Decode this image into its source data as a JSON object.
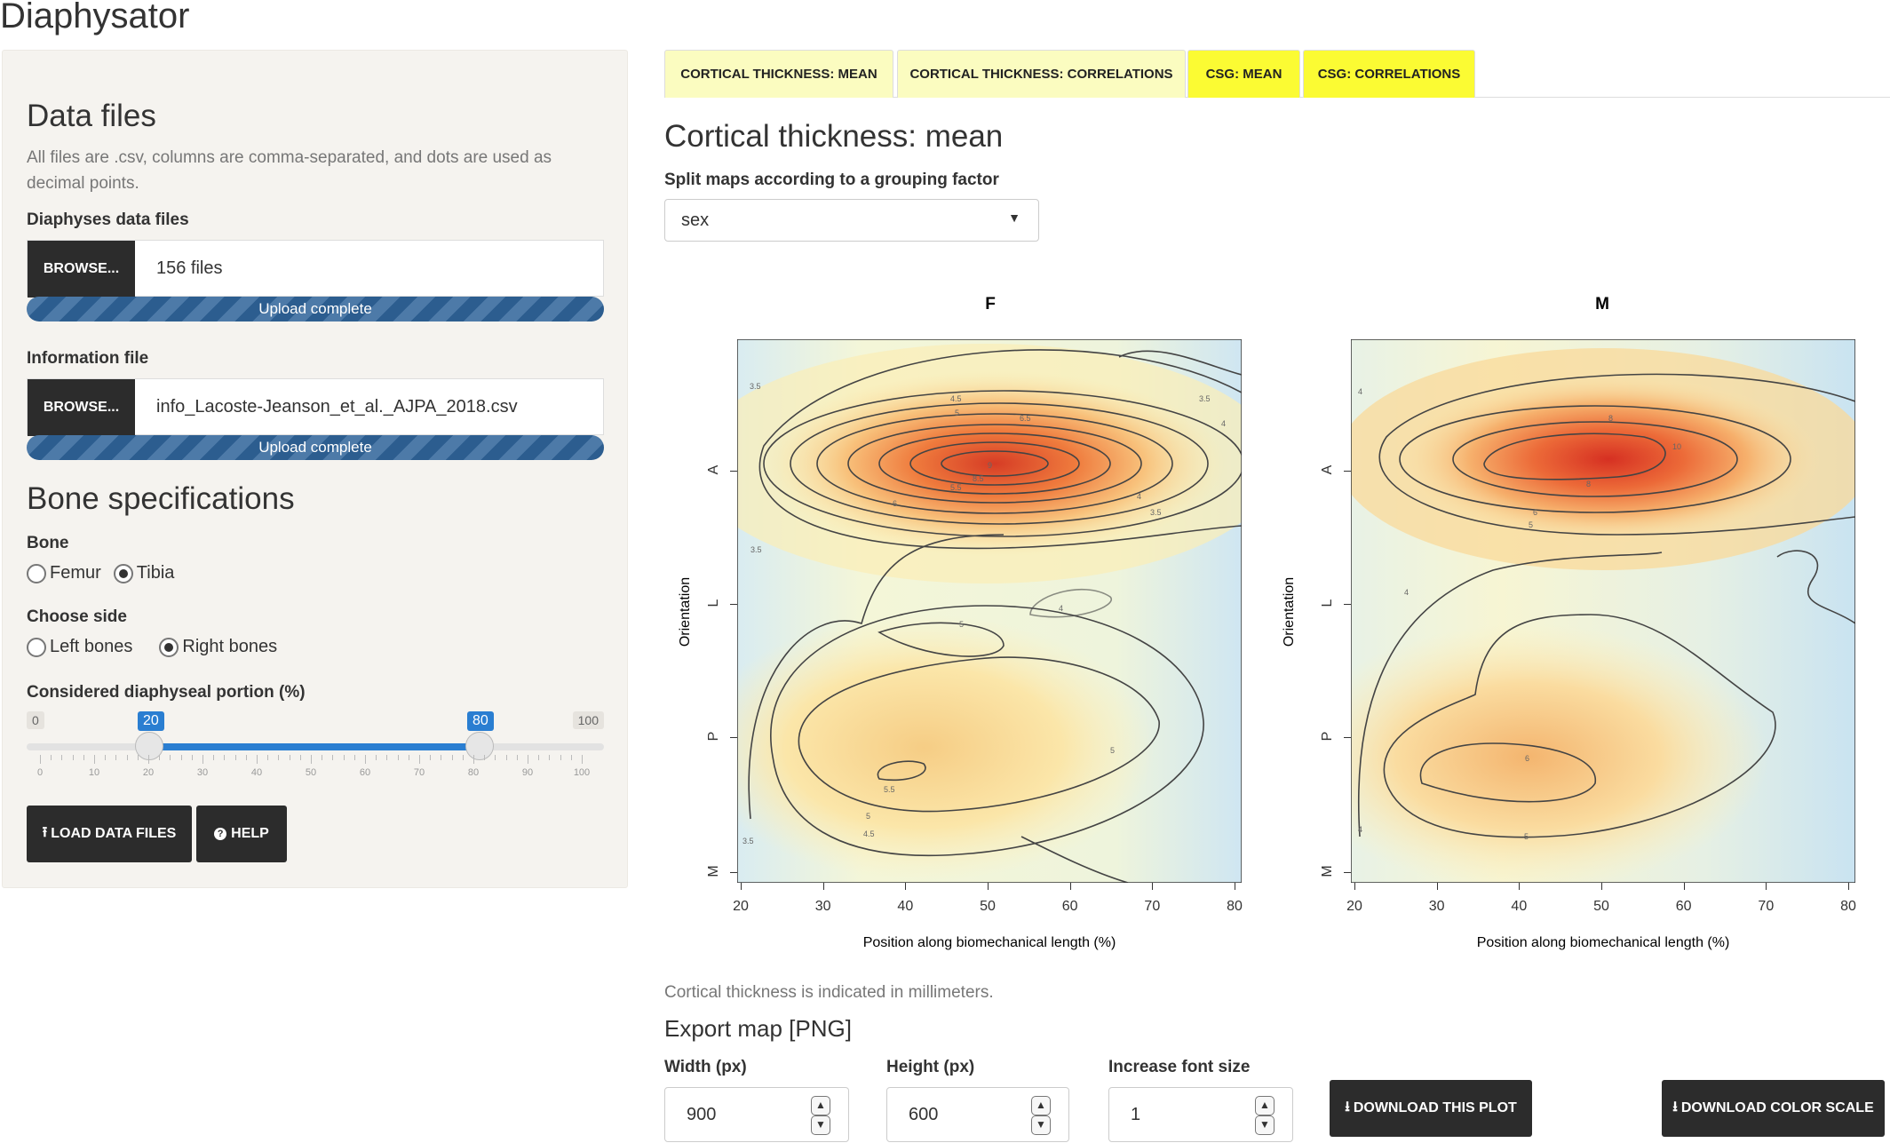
{
  "app_title": "Diaphysator",
  "sidebar": {
    "data_files": {
      "heading": "Data files",
      "help": "All files are .csv, columns are comma-separated, and dots are used as decimal points.",
      "diaphyses": {
        "label": "Diaphyses data files",
        "browse": "BROWSE...",
        "value": "156 files",
        "status": "Upload complete",
        "progress": 1.0
      },
      "info": {
        "label": "Information file",
        "browse": "BROWSE...",
        "value": "info_Lacoste-Jeanson_et_al._AJPA_2018.csv",
        "status": "Upload complete",
        "progress": 1.0
      }
    },
    "bone_spec": {
      "heading": "Bone specifications",
      "bone": {
        "label": "Bone",
        "options": [
          "Femur",
          "Tibia"
        ],
        "selected": "Tibia"
      },
      "side": {
        "label": "Choose side",
        "options": [
          "Left bones",
          "Right bones"
        ],
        "selected": "Right bones"
      },
      "portion": {
        "label": "Considered diaphyseal portion (%)",
        "min": 0,
        "max": 100,
        "min_label": "0",
        "max_label": "100",
        "low": 20,
        "high": 80,
        "low_label": "20",
        "high_label": "80",
        "ticks": [
          "0",
          "10",
          "20",
          "30",
          "40",
          "50",
          "60",
          "70",
          "80",
          "90",
          "100"
        ]
      }
    },
    "buttons": {
      "load": "LOAD DATA FILES",
      "help": "HELP"
    }
  },
  "tabs": [
    {
      "label": "CORTICAL THICKNESS: MEAN",
      "active": true
    },
    {
      "label": "CORTICAL THICKNESS: CORRELATIONS",
      "active": false
    },
    {
      "label": "CSG: MEAN",
      "active": false
    },
    {
      "label": "CSG: CORRELATIONS",
      "active": false
    }
  ],
  "main": {
    "heading": "Cortical thickness: mean",
    "split_label": "Split maps according to a grouping factor",
    "split_value": "sex",
    "note": "Cortical thickness is indicated in millimeters.",
    "export": {
      "heading": "Export map [PNG]",
      "width": {
        "label": "Width (px)",
        "value": "900"
      },
      "height": {
        "label": "Height (px)",
        "value": "600"
      },
      "font": {
        "label": "Increase font size",
        "value": "1"
      },
      "download_plot": "DOWNLOAD THIS PLOT",
      "download_scale": "DOWNLOAD COLOR SCALE"
    }
  },
  "chart_data": [
    {
      "type": "heatmap",
      "title": "F",
      "xlabel": "Position along biomechanical length (%)",
      "ylabel": "Orientation",
      "xlim": [
        20,
        80
      ],
      "x_ticks": [
        "20",
        "30",
        "40",
        "50",
        "60",
        "70",
        "80"
      ],
      "y_ticks": [
        "A",
        "L",
        "P",
        "M"
      ],
      "contour_labels": [
        "3.5",
        "4",
        "4.5",
        "5",
        "5.5",
        "6",
        "6.5",
        "7",
        "8",
        "9",
        "10"
      ],
      "peaks": [
        {
          "x": 50,
          "y": "A",
          "value": 10
        },
        {
          "x": 40,
          "y": "between P and M",
          "value": 5.5
        }
      ],
      "colors": {
        "low": "#cfe6f2",
        "mid": "#fcf6c0",
        "high": "#d73a26"
      }
    },
    {
      "type": "heatmap",
      "title": "M",
      "xlabel": "Position along biomechanical length (%)",
      "ylabel": "Orientation",
      "xlim": [
        20,
        80
      ],
      "x_ticks": [
        "20",
        "30",
        "40",
        "50",
        "60",
        "70",
        "80"
      ],
      "y_ticks": [
        "A",
        "L",
        "P",
        "M"
      ],
      "contour_labels": [
        "4",
        "5",
        "6",
        "7",
        "8",
        "9",
        "10"
      ],
      "peaks": [
        {
          "x": 50,
          "y": "A",
          "value": 10
        },
        {
          "x": 38,
          "y": "between P and M",
          "value": 6
        }
      ],
      "colors": {
        "low": "#cfe6f2",
        "mid": "#fcf6c0",
        "high": "#d73a26"
      }
    }
  ]
}
